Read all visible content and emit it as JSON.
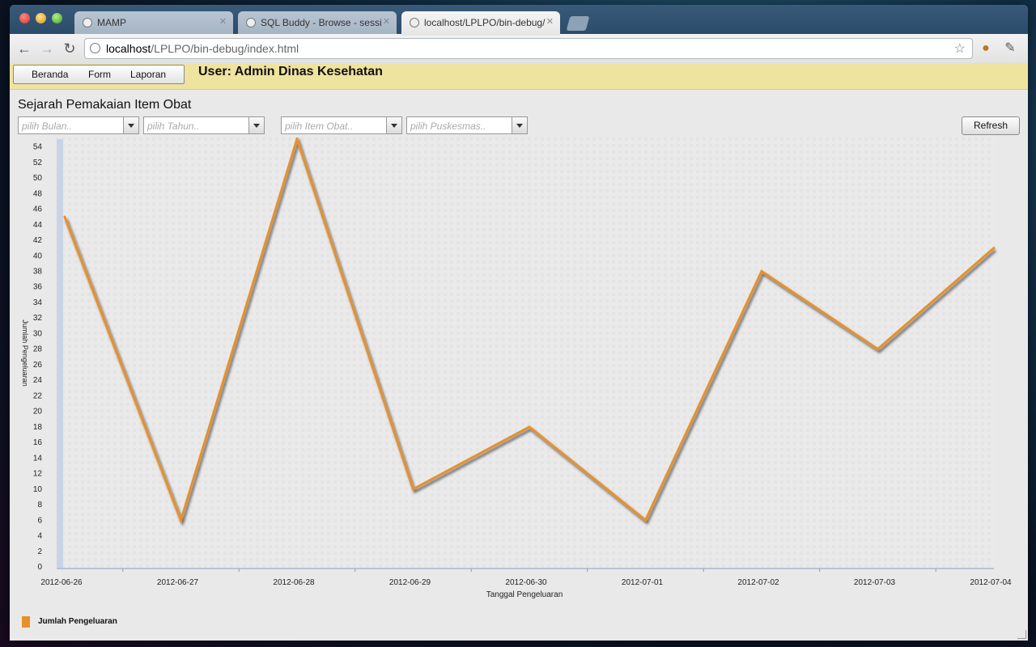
{
  "browser": {
    "tabs": [
      {
        "title": "MAMP",
        "active": false
      },
      {
        "title": "SQL Buddy - Browse - session",
        "active": false
      },
      {
        "title": "localhost/LPLPO/bin-debug/index.html",
        "active": true
      }
    ],
    "url_host": "localhost",
    "url_path": "/LPLPO/bin-debug/index.html"
  },
  "menu": {
    "items": [
      "Beranda",
      "Form",
      "Laporan"
    ]
  },
  "user_label": "User: Admin Dinas Kesehatan",
  "page_title": "Sejarah Pemakaian Item Obat",
  "filters": {
    "month_placeholder": "pilih Bulan..",
    "year_placeholder": "pilih Tahun..",
    "item_placeholder": "pilih Item Obat..",
    "puskesmas_placeholder": "pilih Puskesmas.."
  },
  "refresh_label": "Refresh",
  "chart_data": {
    "type": "line",
    "xlabel": "Tanggal Pengeluaran",
    "ylabel": "Jumlah Pengeluaran",
    "ylim": [
      0,
      55
    ],
    "yticks": [
      0,
      2,
      4,
      6,
      8,
      10,
      12,
      14,
      16,
      18,
      20,
      22,
      24,
      26,
      28,
      30,
      32,
      34,
      36,
      38,
      40,
      42,
      44,
      46,
      48,
      50,
      52,
      54
    ],
    "categories": [
      "2012-06-26",
      "2012-06-27",
      "2012-06-28",
      "2012-06-29",
      "2012-06-30",
      "2012-07-01",
      "2012-07-02",
      "2012-07-03",
      "2012-07-04"
    ],
    "series": [
      {
        "name": "Jumlah Pengeluaran",
        "color": "#e8902a",
        "values": [
          45,
          6,
          55,
          10,
          18,
          6,
          38,
          28,
          41
        ]
      }
    ],
    "legend_position": "bottom-left",
    "grid": false
  }
}
